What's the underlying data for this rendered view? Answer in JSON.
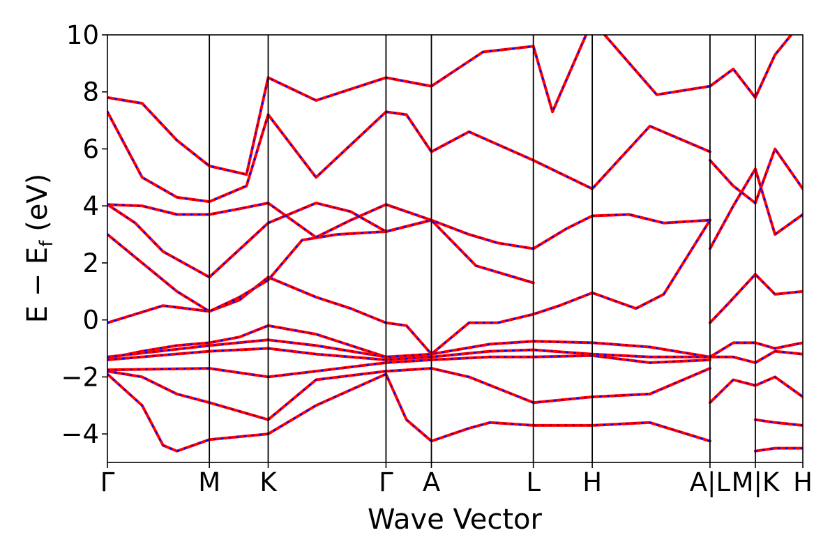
{
  "chart_data": {
    "type": "line",
    "title": "",
    "xlabel": "Wave Vector",
    "ylabel": "E − E_f (eV)",
    "ylabel_parts": {
      "main": "E − E",
      "sub": "f",
      "unit": " (eV)"
    },
    "ylim": [
      -5,
      10
    ],
    "y_ticks": [
      "−4",
      "−2",
      "0",
      "2",
      "4",
      "6",
      "8",
      "10"
    ],
    "y_tick_values": [
      -4,
      -2,
      0,
      2,
      4,
      6,
      8,
      10
    ],
    "x_range": [
      0,
      1
    ],
    "kpoints": [
      {
        "label": "Γ",
        "x": 0.0
      },
      {
        "label": "M",
        "x": 0.1466
      },
      {
        "label": "K",
        "x": 0.2312
      },
      {
        "label": "Γ",
        "x": 0.4006
      },
      {
        "label": "A",
        "x": 0.4659
      },
      {
        "label": "L",
        "x": 0.6125
      },
      {
        "label": "H",
        "x": 0.6972
      },
      {
        "label": "A|L",
        "x": 0.8665
      },
      {
        "label": "M|K",
        "x": 0.9317
      },
      {
        "label": "H",
        "x": 1.0
      }
    ],
    "grid": false,
    "legend": "none",
    "series": [
      {
        "color": "#ff0000",
        "style": "solid",
        "bands": [
          {
            "x": [
              0,
              0.04,
              0.08,
              0.1466,
              0.19,
              0.2312,
              0.3,
              0.35,
              0.4006,
              0.43,
              0.4659,
              0.52,
              0.5612,
              0.6125,
              0.65,
              0.6972,
              0.76,
              0.8,
              0.8665
            ],
            "y": [
              -0.1,
              0.2,
              0.5,
              0.3,
              0.7,
              1.5,
              0.8,
              0.4,
              -0.1,
              -0.2,
              -1.2,
              -0.1,
              -0.1,
              0.2,
              0.5,
              0.95,
              0.4,
              0.9,
              3.5
            ]
          },
          {
            "x": [
              0,
              0.05,
              0.1,
              0.1466,
              0.19,
              0.2312,
              0.28,
              0.33,
              0.4006,
              0.4659,
              0.52,
              0.5612,
              0.6125,
              0.66,
              0.6972,
              0.75,
              0.8,
              0.8665
            ],
            "y": [
              3.0,
              2.0,
              1.0,
              0.3,
              0.8,
              1.4,
              2.8,
              3.0,
              3.1,
              3.5,
              3.0,
              2.7,
              2.5,
              3.2,
              3.65,
              3.7,
              3.4,
              3.5
            ]
          },
          {
            "x": [
              0,
              0.04,
              0.08,
              0.1466,
              0.2312,
              0.3,
              0.35,
              0.4006,
              0.4659,
              0.53,
              0.6125
            ],
            "y": [
              4.05,
              3.4,
              2.4,
              1.5,
              3.4,
              4.1,
              3.8,
              3.1,
              3.5,
              1.9,
              1.3
            ]
          },
          {
            "x": [
              0,
              0.05,
              0.1,
              0.1466,
              0.19,
              0.2312,
              0.3,
              0.35,
              0.4006,
              0.4659
            ],
            "y": [
              4.05,
              4.0,
              3.7,
              3.7,
              3.9,
              4.1,
              2.9,
              3.5,
              4.05,
              3.5
            ]
          },
          {
            "x": [
              0,
              0.05,
              0.1,
              0.1466,
              0.2,
              0.2312,
              0.3,
              0.4006,
              0.43,
              0.4659,
              0.52,
              0.6125,
              0.6972,
              0.78,
              0.8665
            ],
            "y": [
              7.3,
              5.0,
              4.3,
              4.15,
              4.7,
              7.2,
              5.0,
              7.3,
              7.2,
              5.9,
              6.6,
              5.6,
              4.6,
              6.8,
              5.9
            ]
          },
          {
            "x": [
              0,
              0.05,
              0.1,
              0.1466,
              0.2,
              0.2312,
              0.3,
              0.4006,
              0.4659,
              0.54,
              0.6125,
              0.64,
              0.6972,
              0.79,
              0.8665
            ],
            "y": [
              7.8,
              7.6,
              6.3,
              5.4,
              5.1,
              8.5,
              7.7,
              8.5,
              8.2,
              9.4,
              9.6,
              7.3,
              10.5,
              7.9,
              8.2
            ]
          },
          {
            "x": [
              0,
              0.05,
              0.1,
              0.1466,
              0.19,
              0.2312,
              0.3,
              0.4006,
              0.4659
            ],
            "y": [
              -1.35,
              -1.1,
              -0.9,
              -0.8,
              -0.6,
              -0.2,
              -0.5,
              -1.3,
              -1.25
            ]
          },
          {
            "x": [
              0,
              0.1466,
              0.2312,
              0.3,
              0.4006,
              0.4659,
              0.55,
              0.6125,
              0.6972,
              0.78,
              0.8665
            ],
            "y": [
              -1.3,
              -0.9,
              -0.7,
              -0.9,
              -1.3,
              -1.2,
              -0.85,
              -0.75,
              -0.8,
              -0.95,
              -1.3
            ]
          },
          {
            "x": [
              0,
              0.1466,
              0.2312,
              0.3,
              0.4006,
              0.4659,
              0.55,
              0.6125,
              0.6972,
              0.78,
              0.8665
            ],
            "y": [
              -1.4,
              -1.1,
              -1.0,
              -1.2,
              -1.4,
              -1.3,
              -1.1,
              -1.05,
              -1.2,
              -1.3,
              -1.3
            ]
          },
          {
            "x": [
              0,
              0.1466,
              0.2312,
              0.3,
              0.4006,
              0.4659,
              0.55,
              0.6125,
              0.6972,
              0.78,
              0.8665
            ],
            "y": [
              -1.75,
              -1.7,
              -2.0,
              -1.8,
              -1.5,
              -1.4,
              -1.3,
              -1.3,
              -1.25,
              -1.5,
              -1.4
            ]
          },
          {
            "x": [
              0,
              0.05,
              0.1,
              0.1466,
              0.2312,
              0.3,
              0.4006,
              0.4659,
              0.52,
              0.6125,
              0.6972,
              0.78,
              0.8665
            ],
            "y": [
              -1.8,
              -2.0,
              -2.6,
              -2.9,
              -3.5,
              -2.1,
              -1.8,
              -1.7,
              -2.0,
              -2.9,
              -2.7,
              -2.6,
              -1.7
            ]
          },
          {
            "x": [
              0,
              0.05,
              0.08,
              0.1,
              0.1466,
              0.2312,
              0.3,
              0.4006,
              0.43,
              0.4659,
              0.52,
              0.55,
              0.6125,
              0.6972,
              0.78,
              0.8665
            ],
            "y": [
              -1.9,
              -3.0,
              -4.4,
              -4.6,
              -4.2,
              -4.0,
              -3.0,
              -1.9,
              -3.5,
              -4.25,
              -3.8,
              -3.6,
              -3.7,
              -3.7,
              -3.6,
              -4.25
            ]
          },
          {
            "x": [
              0.8665,
              0.89,
              0.9317,
              0.96,
              1.0
            ],
            "y": [
              -0.1,
              0.5,
              1.6,
              0.9,
              1.0
            ]
          },
          {
            "x": [
              0.8665,
              0.9,
              0.9317,
              0.96,
              1.0
            ],
            "y": [
              2.5,
              4.0,
              5.3,
              3.0,
              3.7
            ]
          },
          {
            "x": [
              0.8665,
              0.9,
              0.9317,
              0.96,
              1.0
            ],
            "y": [
              -1.3,
              -0.8,
              -0.8,
              -1.0,
              -0.8
            ]
          },
          {
            "x": [
              0.8665,
              0.9,
              0.9317,
              0.96,
              1.0
            ],
            "y": [
              -1.3,
              -1.3,
              -1.5,
              -1.1,
              -1.2
            ]
          },
          {
            "x": [
              0.8665,
              0.9,
              0.9317,
              0.96,
              1.0
            ],
            "y": [
              -2.9,
              -2.1,
              -2.3,
              -2.0,
              -2.7
            ]
          },
          {
            "x": [
              0.8665,
              0.9,
              0.9317,
              0.96,
              1.0
            ],
            "y": [
              5.6,
              4.7,
              4.1,
              6.0,
              4.6
            ]
          },
          {
            "x": [
              0.8665,
              0.9,
              0.9317,
              0.96,
              1.0
            ],
            "y": [
              8.2,
              8.8,
              7.8,
              9.3,
              10.5
            ]
          },
          {
            "x": [
              0.9317,
              0.96,
              1.0
            ],
            "y": [
              -3.5,
              -3.6,
              -3.7
            ]
          },
          {
            "x": [
              0.9317,
              0.96,
              1.0
            ],
            "y": [
              -4.6,
              -4.5,
              -4.5
            ]
          }
        ]
      }
    ]
  }
}
